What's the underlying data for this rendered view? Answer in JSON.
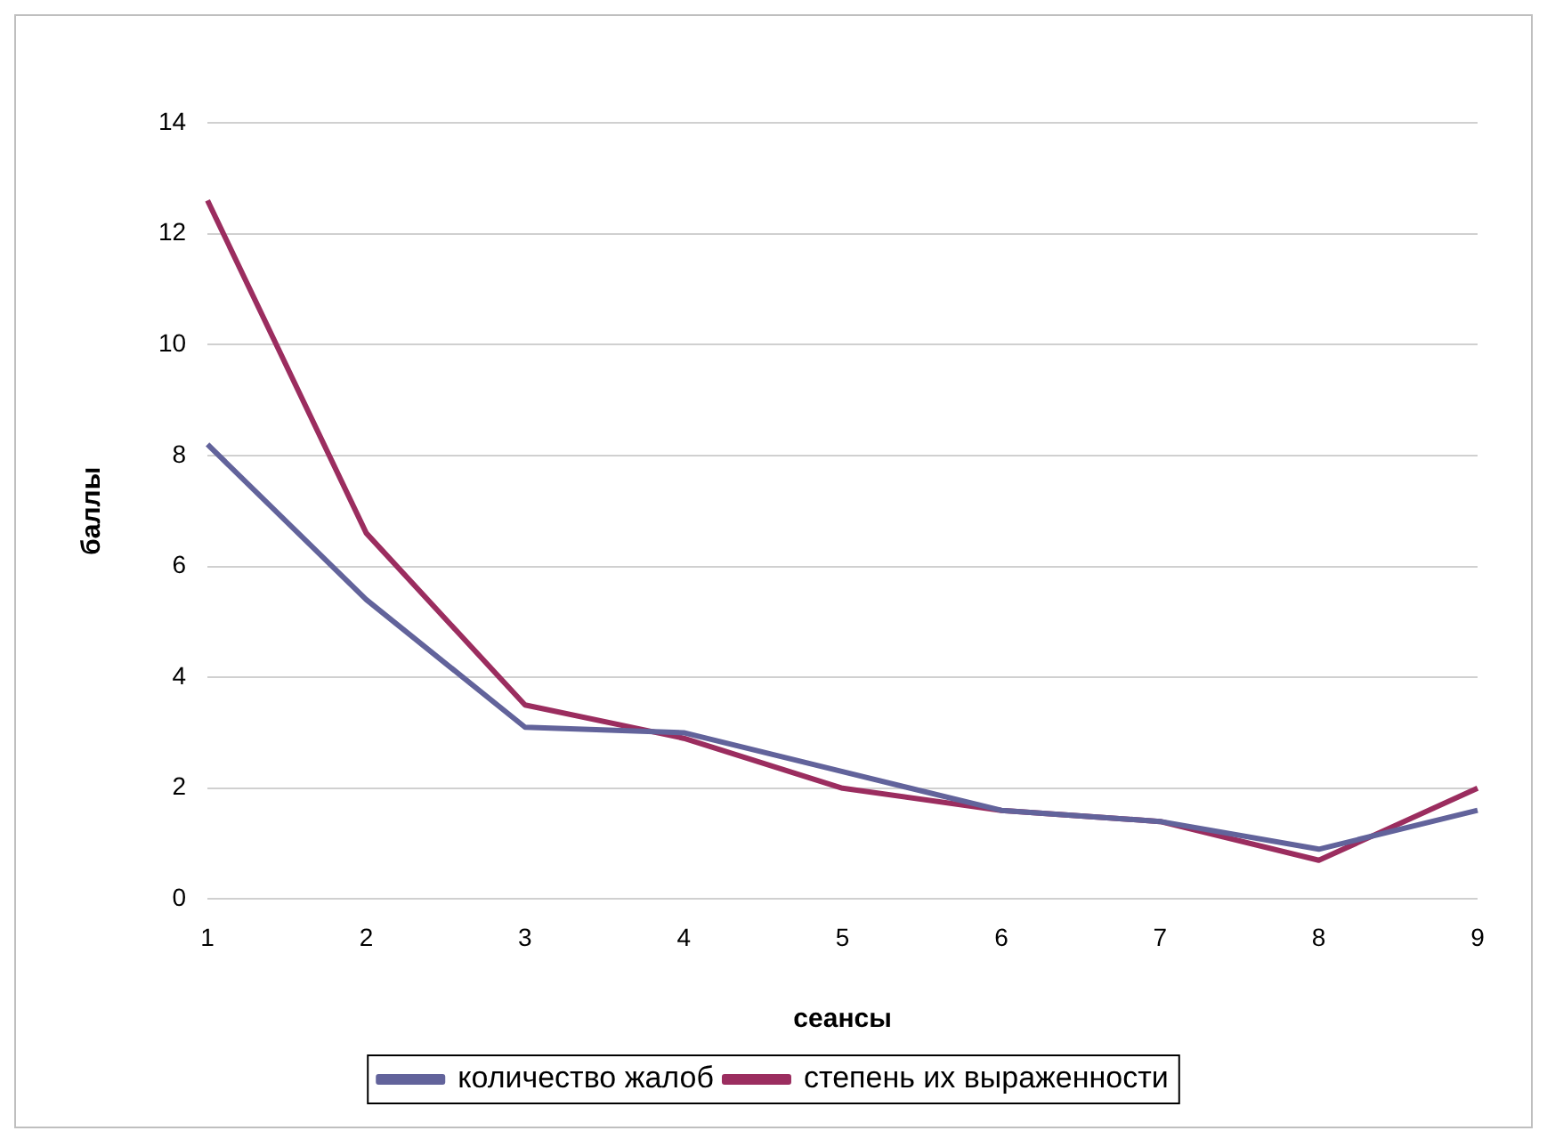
{
  "chart_data": {
    "type": "line",
    "xlabel": "сеансы",
    "ylabel": "баллы",
    "categories": [
      "1",
      "2",
      "3",
      "4",
      "5",
      "6",
      "7",
      "8",
      "9"
    ],
    "series": [
      {
        "name": "количество жалоб",
        "color": "#62639b",
        "values": [
          8.2,
          5.4,
          3.1,
          3.0,
          2.3,
          1.6,
          1.4,
          0.9,
          1.6
        ]
      },
      {
        "name": "степень их выраженности",
        "color": "#9b2d5f",
        "values": [
          12.6,
          6.6,
          3.5,
          2.9,
          2.0,
          1.6,
          1.4,
          0.7,
          2.0
        ]
      }
    ],
    "ylim": [
      0,
      14
    ],
    "yticks": [
      0,
      2,
      4,
      6,
      8,
      10,
      12,
      14
    ],
    "grid": "y",
    "legend": "bottom",
    "marker": "none",
    "line_style": "solid"
  }
}
